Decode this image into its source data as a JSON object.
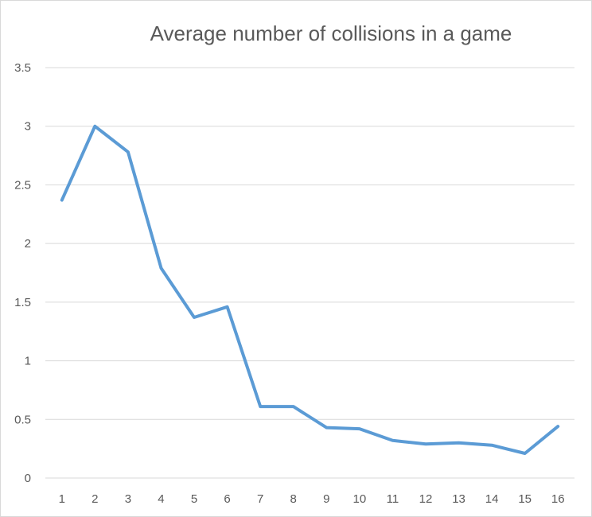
{
  "chart_data": {
    "type": "line",
    "title": "Average number of collisions in a game",
    "xlabel": "",
    "ylabel": "",
    "categories": [
      "1",
      "2",
      "3",
      "4",
      "5",
      "6",
      "7",
      "8",
      "9",
      "10",
      "11",
      "12",
      "13",
      "14",
      "15",
      "16"
    ],
    "series": [
      {
        "values": [
          2.37,
          3.0,
          2.78,
          1.79,
          1.37,
          1.46,
          0.61,
          0.61,
          0.43,
          0.42,
          0.32,
          0.29,
          0.3,
          0.28,
          0.21,
          0.44
        ],
        "color": "#5b9bd5"
      }
    ],
    "ylim": [
      0,
      3.5
    ],
    "yticks": [
      "0",
      "0.5",
      "1",
      "1.5",
      "2",
      "2.5",
      "3",
      "3.5"
    ],
    "grid": true,
    "legend": "none"
  }
}
